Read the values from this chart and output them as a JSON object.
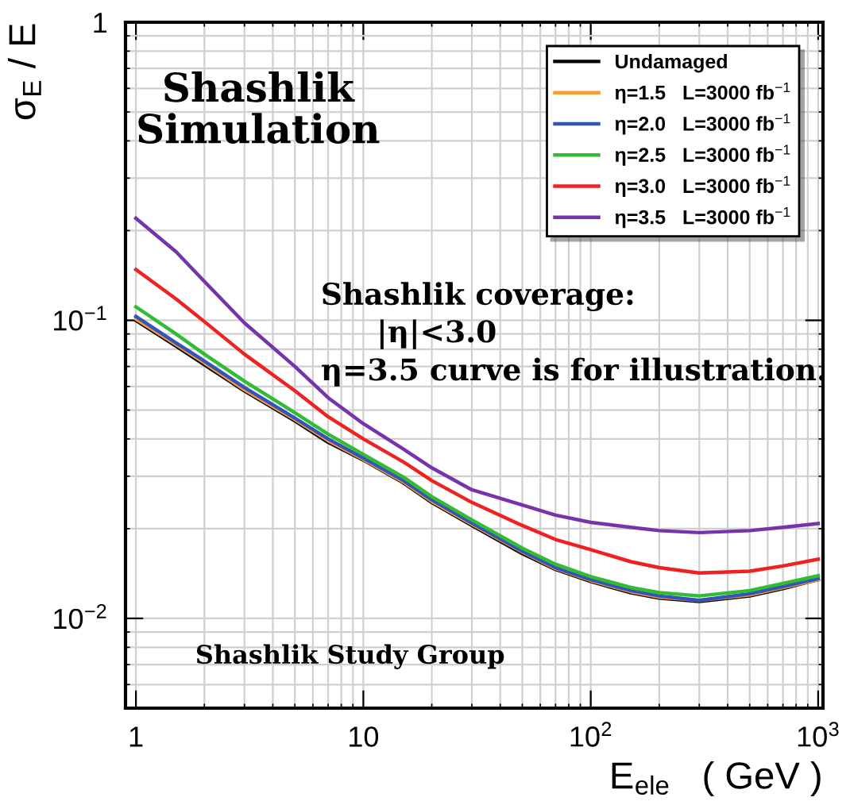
{
  "chart_data": {
    "type": "line",
    "xlabel": "E$_{ele}$   ( GeV )",
    "ylabel": "σ$_{E}$ / E",
    "x": [
      1,
      1.5,
      2,
      3,
      5,
      7,
      10,
      15,
      20,
      30,
      50,
      70,
      100,
      150,
      200,
      300,
      500,
      700,
      1000
    ],
    "series": [
      {
        "name": "Undamaged",
        "color": "#000000",
        "values": [
          0.1,
          0.082,
          0.071,
          0.058,
          0.046,
          0.039,
          0.034,
          0.0285,
          0.0245,
          0.0205,
          0.0165,
          0.0146,
          0.0133,
          0.0122,
          0.0117,
          0.0114,
          0.0119,
          0.0126,
          0.0135
        ]
      },
      {
        "name": "η=1.5   L=3000 fb$^{−1}$",
        "color": "#ff9933",
        "values": [
          0.101,
          0.083,
          0.072,
          0.0585,
          0.0465,
          0.0395,
          0.0342,
          0.0287,
          0.0247,
          0.0207,
          0.0167,
          0.0147,
          0.0134,
          0.0123,
          0.0118,
          0.0115,
          0.012,
          0.0127,
          0.0135
        ]
      },
      {
        "name": "η=2.0   L=3000 fb$^{−1}$",
        "color": "#3355bb",
        "values": [
          0.103,
          0.084,
          0.073,
          0.0595,
          0.047,
          0.04,
          0.0345,
          0.029,
          0.025,
          0.0209,
          0.0168,
          0.0148,
          0.0135,
          0.0124,
          0.0119,
          0.0115,
          0.0121,
          0.0128,
          0.0136
        ]
      },
      {
        "name": "η=2.5   L=3000 fb$^{−1}$",
        "color": "#33bb33",
        "values": [
          0.111,
          0.09,
          0.077,
          0.0625,
          0.049,
          0.0415,
          0.0355,
          0.0298,
          0.0256,
          0.0214,
          0.0172,
          0.0152,
          0.0138,
          0.0127,
          0.0122,
          0.0119,
          0.0124,
          0.0131,
          0.0139
        ]
      },
      {
        "name": "η=3.0   L=3000 fb$^{−1}$",
        "color": "#ee2222",
        "values": [
          0.148,
          0.118,
          0.099,
          0.077,
          0.058,
          0.0475,
          0.04,
          0.0335,
          0.029,
          0.0245,
          0.0205,
          0.0184,
          0.017,
          0.0155,
          0.0148,
          0.0142,
          0.0144,
          0.015,
          0.0158
        ]
      },
      {
        "name": "η=3.5   L=3000 fb$^{−1}$",
        "color": "#7733aa",
        "values": [
          0.22,
          0.17,
          0.135,
          0.098,
          0.07,
          0.055,
          0.045,
          0.037,
          0.032,
          0.027,
          0.024,
          0.0222,
          0.021,
          0.0202,
          0.0197,
          0.0194,
          0.0197,
          0.0202,
          0.0208
        ]
      }
    ],
    "log": "xy",
    "xlim": [
      0.9,
      1050
    ],
    "ylim": [
      0.005,
      1
    ],
    "xticks": [
      1,
      10,
      {
        "value": 100,
        "label": "10$^{2}$"
      },
      {
        "value": 1000,
        "label": "10$^{3}$"
      }
    ],
    "yticks": [
      {
        "value": 0.01,
        "label": "10$^{−2}$"
      },
      {
        "value": 0.1,
        "label": "10$^{−1}$"
      },
      1
    ],
    "grid": true,
    "legend": "top right",
    "marker": "none",
    "line_style": "solid",
    "annotations": [
      "Shashlik\nSimulation",
      "Shashlik coverage:",
      "|η|<3.0",
      "η=3.5 curve is for illustration.",
      "Shashlik Study Group"
    ]
  }
}
